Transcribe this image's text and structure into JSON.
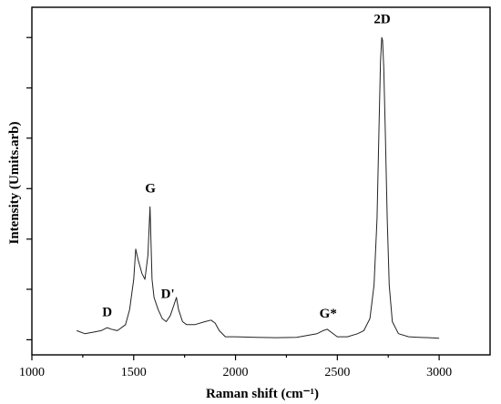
{
  "chart_data": {
    "type": "line",
    "title": "",
    "xlabel": "Raman shift (cm⁻¹)",
    "ylabel": "Intensity (Umits.arb)",
    "xlim": [
      1000,
      3250
    ],
    "ylim": [
      -0.05,
      1.1
    ],
    "xticks": [
      1000,
      1500,
      2000,
      2500,
      3000
    ],
    "xtick_labels": [
      "1000",
      "1500",
      "2000",
      "2500",
      "3000"
    ],
    "yticks_unlabeled": [
      0,
      0.167,
      0.333,
      0.5,
      0.667,
      0.833,
      1.0
    ],
    "grid": false,
    "legend": "none",
    "series": [
      {
        "x": [
          1220,
          1260,
          1300,
          1340,
          1370,
          1390,
          1420,
          1460,
          1480,
          1500,
          1510,
          1520,
          1540,
          1555,
          1570,
          1580,
          1590,
          1600,
          1620,
          1640,
          1660,
          1680,
          1700,
          1710,
          1720,
          1740,
          1760,
          1800,
          1850,
          1880,
          1900,
          1920,
          1950,
          2000,
          2100,
          2200,
          2300,
          2400,
          2430,
          2450,
          2470,
          2500,
          2550,
          2600,
          2630,
          2660,
          2680,
          2695,
          2705,
          2712,
          2718,
          2722,
          2728,
          2735,
          2745,
          2755,
          2770,
          2800,
          2850,
          2900,
          2950,
          3000
        ],
        "y": [
          0.03,
          0.02,
          0.025,
          0.03,
          0.04,
          0.035,
          0.03,
          0.05,
          0.1,
          0.2,
          0.3,
          0.27,
          0.22,
          0.2,
          0.28,
          0.44,
          0.2,
          0.14,
          0.1,
          0.07,
          0.06,
          0.08,
          0.12,
          0.14,
          0.1,
          0.06,
          0.05,
          0.05,
          0.06,
          0.065,
          0.055,
          0.03,
          0.01,
          0.01,
          0.008,
          0.007,
          0.008,
          0.02,
          0.03,
          0.035,
          0.025,
          0.01,
          0.01,
          0.02,
          0.03,
          0.07,
          0.18,
          0.4,
          0.72,
          0.92,
          1.0,
          0.99,
          0.9,
          0.7,
          0.4,
          0.18,
          0.06,
          0.02,
          0.01,
          0.008,
          0.007,
          0.005
        ]
      }
    ],
    "annotations": [
      {
        "text": "D",
        "x": 1370,
        "y": 0.06
      },
      {
        "text": "G",
        "x": 1582,
        "y": 0.47
      },
      {
        "text": "D'",
        "x": 1667,
        "y": 0.12
      },
      {
        "text": "G*",
        "x": 2455,
        "y": 0.055
      },
      {
        "text": "2D",
        "x": 2720,
        "y": 1.03
      }
    ]
  }
}
